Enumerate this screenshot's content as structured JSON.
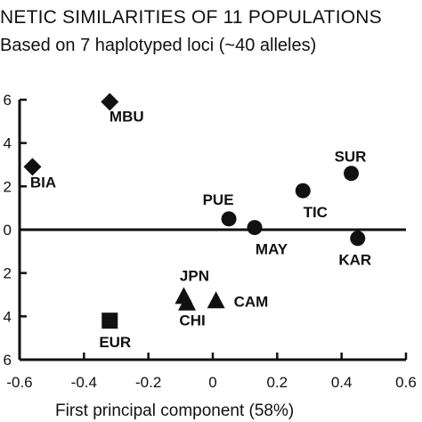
{
  "chart_data": {
    "type": "scatter",
    "title": "NETIC SIMILARITIES OF 11 POPULATIONS",
    "subtitle": "Based on 7 haplotyped loci (~40 alleles)",
    "xlabel": "First principal component (58%)",
    "ylabel": "",
    "xlim": [
      -0.6,
      0.6
    ],
    "ylim": [
      -0.6,
      0.6
    ],
    "grid": false,
    "x_ticks": [
      "-0.6",
      "-0.4",
      "-0.2",
      "0",
      "0.2",
      "0.4",
      "0.6"
    ],
    "y_ticks": [
      "6",
      "4",
      "2",
      "0",
      "2",
      "4",
      "6"
    ],
    "points": [
      {
        "label": "MBU",
        "x": -0.32,
        "y": 0.59,
        "marker": "diamond"
      },
      {
        "label": "BIA",
        "x": -0.56,
        "y": 0.29,
        "marker": "diamond"
      },
      {
        "label": "SUR",
        "x": 0.43,
        "y": 0.26,
        "marker": "circle"
      },
      {
        "label": "TIC",
        "x": 0.28,
        "y": 0.18,
        "marker": "circle"
      },
      {
        "label": "PUE",
        "x": 0.05,
        "y": 0.05,
        "marker": "circle"
      },
      {
        "label": "MAY",
        "x": 0.13,
        "y": 0.01,
        "marker": "circle"
      },
      {
        "label": "KAR",
        "x": 0.45,
        "y": -0.04,
        "marker": "circle"
      },
      {
        "label": "JPN",
        "x": -0.09,
        "y": -0.31,
        "marker": "triangle"
      },
      {
        "label": "CHI",
        "x": -0.08,
        "y": -0.34,
        "marker": "triangle"
      },
      {
        "label": "CAM",
        "x": 0.01,
        "y": -0.33,
        "marker": "triangle"
      },
      {
        "label": "EUR",
        "x": -0.32,
        "y": -0.42,
        "marker": "square"
      }
    ]
  }
}
